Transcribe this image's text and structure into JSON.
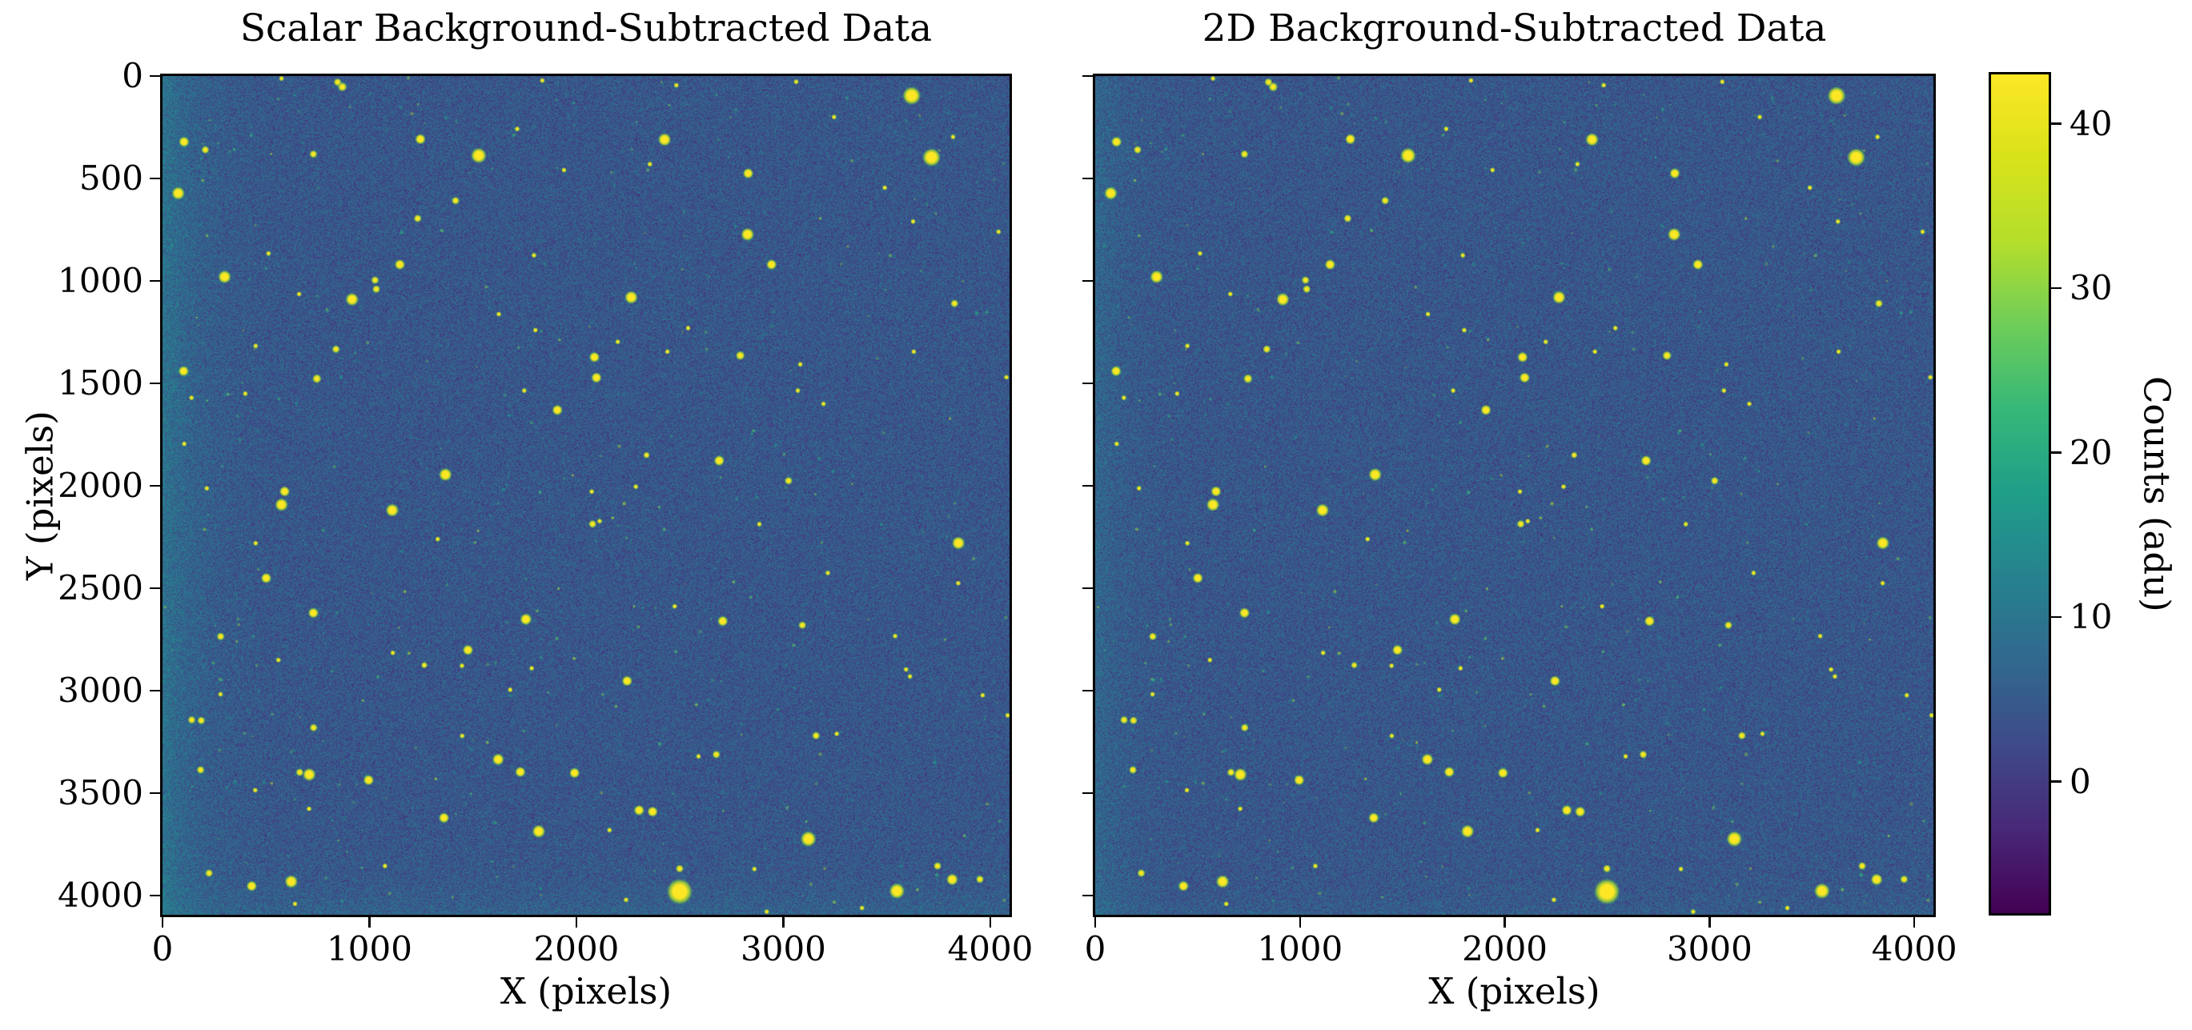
{
  "chart_data": {
    "type": "heatmap",
    "description": "Two background-subtracted astronomical CCD star-field images shown with a viridis colormap and a shared colorbar.",
    "panels": [
      {
        "title": "Scalar Background-Subtracted Data",
        "xlabel": "X (pixels)",
        "ylabel": "Y (pixels)",
        "background_gradient": {
          "left_amp": 5.0,
          "left_decay": 160,
          "bottom_amp": 2.2,
          "bottom_decay": 100
        }
      },
      {
        "title": "2D Background-Subtracted Data",
        "xlabel": "X (pixels)",
        "background_gradient": {
          "left_amp": 3.0,
          "left_decay": 120,
          "bottom_amp": 1.2,
          "bottom_decay": 80
        }
      }
    ],
    "x_ticks": [
      0,
      1000,
      2000,
      3000,
      4000
    ],
    "y_ticks": [
      0,
      500,
      1000,
      1500,
      2000,
      2500,
      3000,
      3500,
      4000
    ],
    "x_range": [
      0,
      4093
    ],
    "y_range": [
      0,
      4093
    ],
    "y_inverted": true,
    "colorbar": {
      "label": "Counts (adu)",
      "ticks": [
        0,
        10,
        20,
        30,
        40
      ],
      "vmin": -8,
      "vmax": 43,
      "colormap": "viridis"
    },
    "colormap_stops": [
      "#440154",
      "#482878",
      "#3e4a89",
      "#31688e",
      "#26828e",
      "#1f9e89",
      "#35b779",
      "#6dcd59",
      "#b4de2c",
      "#d8e219",
      "#fde725"
    ],
    "background_noise": {
      "mean": 4.5,
      "sigma": 3.3
    },
    "star_color_core": "#fde725",
    "stars": [
      [
        1528,
        388,
        6
      ],
      [
        1246,
        308,
        4
      ],
      [
        76,
        572,
        5
      ],
      [
        300,
        980,
        5
      ],
      [
        916,
        1090,
        5
      ],
      [
        1147,
        920,
        4
      ],
      [
        1027,
        996,
        3
      ],
      [
        1033,
        1040,
        3
      ],
      [
        729,
        381,
        3
      ],
      [
        869,
        53,
        3.5
      ],
      [
        846,
        30,
        3
      ],
      [
        104,
        321,
        4
      ],
      [
        207,
        360,
        3
      ],
      [
        1416,
        608,
        3
      ],
      [
        1233,
        695,
        3
      ],
      [
        1908,
        1630,
        4
      ],
      [
        1367,
        1945,
        5
      ],
      [
        746,
        1477,
        3.5
      ],
      [
        838,
        1333,
        3
      ],
      [
        102,
        1440,
        4
      ],
      [
        590,
        2027,
        4
      ],
      [
        1940,
        459,
        2
      ],
      [
        1795,
        875,
        2
      ],
      [
        1802,
        1240,
        2
      ],
      [
        214,
        2012,
        2
      ],
      [
        400,
        1550,
        2
      ],
      [
        105,
        1795,
        2
      ],
      [
        512,
        866,
        2
      ],
      [
        1625,
        1162,
        2
      ],
      [
        1748,
        1535,
        2
      ],
      [
        450,
        1317,
        2
      ],
      [
        660,
        1064,
        2
      ],
      [
        140,
        1570,
        2
      ],
      [
        1714,
        258,
        2
      ],
      [
        3620,
        96,
        7
      ],
      [
        3716,
        397,
        7
      ],
      [
        2426,
        310,
        5
      ],
      [
        2830,
        475,
        4
      ],
      [
        2827,
        773,
        5
      ],
      [
        2943,
        920,
        4
      ],
      [
        2265,
        1080,
        5
      ],
      [
        2087,
        1372,
        4
      ],
      [
        2792,
        1364,
        3.5
      ],
      [
        2097,
        1472,
        4
      ],
      [
        2690,
        1877,
        4
      ],
      [
        3025,
        1975,
        3
      ],
      [
        2200,
        1297,
        2
      ],
      [
        2440,
        1345,
        2
      ],
      [
        3827,
        1110,
        3
      ],
      [
        3627,
        710,
        2
      ],
      [
        3820,
        297,
        2
      ],
      [
        3245,
        200,
        2
      ],
      [
        3082,
        1407,
        2
      ],
      [
        3194,
        1600,
        2
      ],
      [
        4040,
        760,
        2
      ],
      [
        3630,
        1345,
        2
      ],
      [
        2540,
        1230,
        2
      ],
      [
        3490,
        545,
        2
      ],
      [
        2355,
        430,
        2
      ],
      [
        2339,
        1850,
        2.5
      ],
      [
        3070,
        1535,
        2
      ],
      [
        4078,
        1470,
        2
      ],
      [
        575,
        2092,
        5
      ],
      [
        1110,
        2119,
        5
      ],
      [
        501,
        2450,
        4
      ],
      [
        729,
        2620,
        4
      ],
      [
        1756,
        2651,
        4.5
      ],
      [
        1476,
        2801,
        4
      ],
      [
        709,
        3409,
        5
      ],
      [
        663,
        3398,
        3
      ],
      [
        996,
        3436,
        4
      ],
      [
        1622,
        3335,
        4.5
      ],
      [
        1729,
        3396,
        4
      ],
      [
        1991,
        3401,
        4
      ],
      [
        1818,
        3686,
        5
      ],
      [
        622,
        3931,
        5
      ],
      [
        431,
        3953,
        4
      ],
      [
        225,
        3890,
        3
      ],
      [
        281,
        2735,
        3
      ],
      [
        141,
        3142,
        3
      ],
      [
        187,
        3145,
        3
      ],
      [
        730,
        3180,
        3
      ],
      [
        1360,
        3620,
        4
      ],
      [
        184,
        3386,
        3
      ],
      [
        280,
        3017,
        2
      ],
      [
        1447,
        2878,
        2
      ],
      [
        1784,
        2890,
        2
      ],
      [
        448,
        3485,
        2
      ],
      [
        708,
        3576,
        2
      ],
      [
        1448,
        3220,
        2
      ],
      [
        1113,
        2815,
        2
      ],
      [
        560,
        2850,
        2
      ],
      [
        1265,
        2875,
        2.5
      ],
      [
        450,
        2280,
        2
      ],
      [
        1330,
        2260,
        2
      ],
      [
        1075,
        3855,
        2
      ],
      [
        640,
        4040,
        2
      ],
      [
        1680,
        2995,
        2
      ],
      [
        2499,
        3980,
        10
      ],
      [
        3121,
        3723,
        6
      ],
      [
        3549,
        3977,
        6
      ],
      [
        3816,
        3921,
        4.5
      ],
      [
        3846,
        2279,
        5
      ],
      [
        2303,
        3583,
        4
      ],
      [
        2368,
        3590,
        4
      ],
      [
        2245,
        2952,
        4
      ],
      [
        2707,
        2660,
        4
      ],
      [
        3092,
        2680,
        3
      ],
      [
        2676,
        3311,
        3
      ],
      [
        3158,
        3219,
        3
      ],
      [
        3258,
        3210,
        2
      ],
      [
        3593,
        2896,
        2
      ],
      [
        3612,
        2930,
        2
      ],
      [
        3963,
        3022,
        2
      ],
      [
        3845,
        2475,
        2
      ],
      [
        3540,
        2733,
        2
      ],
      [
        2499,
        3868,
        3
      ],
      [
        2860,
        3870,
        2
      ],
      [
        3950,
        3920,
        3
      ],
      [
        2590,
        3320,
        2
      ],
      [
        3745,
        3855,
        3
      ],
      [
        2475,
        2588,
        2
      ],
      [
        3215,
        2425,
        2
      ],
      [
        4084,
        3120,
        2
      ],
      [
        2160,
        3680,
        2
      ],
      [
        3380,
        4060,
        2
      ],
      [
        2920,
        4078,
        2
      ],
      [
        2240,
        4020,
        2
      ],
      [
        2078,
        2186,
        3
      ],
      [
        2112,
        2172,
        2
      ],
      [
        2074,
        2028,
        2
      ],
      [
        2287,
        2004,
        2
      ],
      [
        2884,
        2187,
        2
      ],
      [
        1835,
        22,
        2
      ],
      [
        3062,
        28,
        2
      ],
      [
        2483,
        45,
        2
      ],
      [
        575,
        12,
        2
      ]
    ]
  }
}
